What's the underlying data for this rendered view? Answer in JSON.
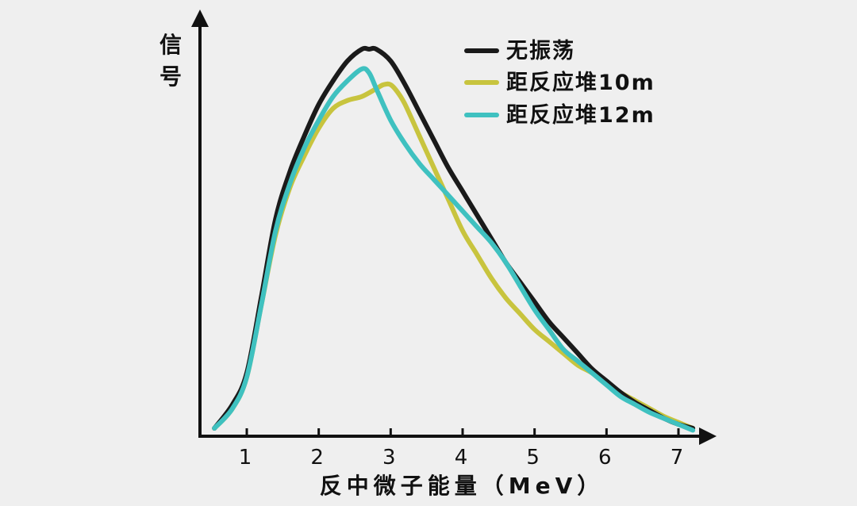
{
  "chart_data": {
    "type": "line",
    "title": "",
    "xlabel": "反中微子能量（MeV）",
    "ylabel": "信号",
    "ylabel_chars": [
      "信",
      "号"
    ],
    "xlim": [
      0.2,
      7.5
    ],
    "ylim": [
      0,
      1.0
    ],
    "xticks": [
      1,
      2,
      3,
      4,
      5,
      6,
      7
    ],
    "yticks_shown": false,
    "grid": false,
    "legend_position": "top-right",
    "series": [
      {
        "name": "无振荡",
        "color": "#1a1a1a",
        "x": [
          0.55,
          0.8,
          1.0,
          1.2,
          1.4,
          1.6,
          1.8,
          2.0,
          2.2,
          2.4,
          2.6,
          2.7,
          2.8,
          3.0,
          3.2,
          3.4,
          3.6,
          3.8,
          4.0,
          4.2,
          4.4,
          4.6,
          4.8,
          5.0,
          5.2,
          5.4,
          5.6,
          5.8,
          6.0,
          6.2,
          6.4,
          6.6,
          6.8,
          7.0,
          7.2
        ],
        "y": [
          0.02,
          0.08,
          0.16,
          0.35,
          0.55,
          0.67,
          0.76,
          0.84,
          0.9,
          0.95,
          0.98,
          0.98,
          0.98,
          0.95,
          0.89,
          0.82,
          0.75,
          0.68,
          0.62,
          0.56,
          0.5,
          0.44,
          0.39,
          0.34,
          0.29,
          0.25,
          0.21,
          0.17,
          0.14,
          0.11,
          0.085,
          0.065,
          0.045,
          0.03,
          0.02
        ]
      },
      {
        "name": "距反应堆10m",
        "color": "#c8c43e",
        "x": [
          0.55,
          0.8,
          1.0,
          1.2,
          1.4,
          1.6,
          1.8,
          2.0,
          2.2,
          2.4,
          2.6,
          2.8,
          2.9,
          3.0,
          3.1,
          3.2,
          3.4,
          3.6,
          3.8,
          4.0,
          4.2,
          4.4,
          4.6,
          4.8,
          5.0,
          5.2,
          5.4,
          5.6,
          5.8,
          6.0,
          6.2,
          6.4,
          6.6,
          6.8,
          7.0,
          7.2
        ],
        "y": [
          0.02,
          0.07,
          0.15,
          0.33,
          0.51,
          0.63,
          0.71,
          0.78,
          0.83,
          0.85,
          0.86,
          0.88,
          0.89,
          0.89,
          0.87,
          0.84,
          0.76,
          0.68,
          0.6,
          0.52,
          0.46,
          0.4,
          0.35,
          0.31,
          0.27,
          0.24,
          0.21,
          0.18,
          0.16,
          0.135,
          0.11,
          0.09,
          0.07,
          0.05,
          0.035,
          0.02
        ]
      },
      {
        "name": "距反应堆12m",
        "color": "#3fc1c0",
        "x": [
          0.55,
          0.8,
          1.0,
          1.2,
          1.4,
          1.6,
          1.8,
          2.0,
          2.2,
          2.4,
          2.6,
          2.7,
          2.8,
          3.0,
          3.2,
          3.4,
          3.6,
          3.8,
          4.0,
          4.2,
          4.4,
          4.6,
          4.8,
          5.0,
          5.2,
          5.4,
          5.6,
          5.8,
          6.0,
          6.2,
          6.4,
          6.6,
          6.8,
          7.0,
          7.2
        ],
        "y": [
          0.02,
          0.07,
          0.15,
          0.33,
          0.52,
          0.64,
          0.73,
          0.8,
          0.86,
          0.9,
          0.93,
          0.92,
          0.88,
          0.8,
          0.74,
          0.69,
          0.65,
          0.61,
          0.57,
          0.53,
          0.49,
          0.44,
          0.38,
          0.32,
          0.27,
          0.22,
          0.19,
          0.16,
          0.13,
          0.1,
          0.08,
          0.06,
          0.045,
          0.03,
          0.015
        ]
      }
    ]
  }
}
